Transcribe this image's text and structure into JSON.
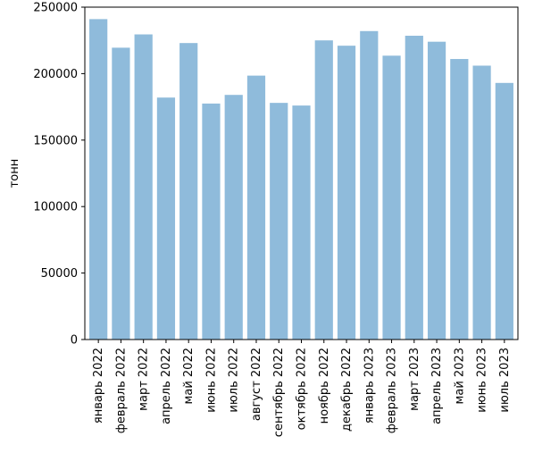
{
  "chart_data": {
    "type": "bar",
    "title": "",
    "xlabel": "",
    "ylabel": "тонн",
    "ylim": [
      0,
      250000
    ],
    "yticks": [
      0,
      50000,
      100000,
      150000,
      200000,
      250000
    ],
    "grid": false,
    "bar_color": "#8fbbdb",
    "categories": [
      "январь 2022",
      "февраль 2022",
      "март 2022",
      "апрель 2022",
      "май 2022",
      "июнь 2022",
      "июль 2022",
      "август 2022",
      "сентябрь 2022",
      "октябрь 2022",
      "ноябрь 2022",
      "декабрь 2022",
      "январь 2023",
      "февраль 2023",
      "март 2023",
      "апрель 2023",
      "май 2023",
      "июнь 2023",
      "июль 2023"
    ],
    "values": [
      241000,
      219500,
      229500,
      182000,
      223000,
      177500,
      184000,
      198500,
      178000,
      176000,
      225000,
      221000,
      232000,
      213500,
      228500,
      224000,
      211000,
      206000,
      193000
    ]
  }
}
